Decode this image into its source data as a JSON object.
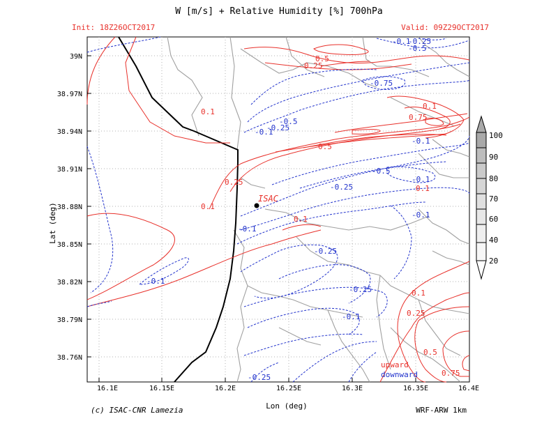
{
  "header": {
    "title": "W [m/s] + Relative Humidity [%] 700hPa",
    "init": "Init: 18Z26OCT2017",
    "valid": "Valid: 09Z29OCT2017"
  },
  "axes": {
    "xlabel": "Lon (deg)",
    "ylabel": "Lat (deg)",
    "x_ticks": [
      "16.1E",
      "16.15E",
      "16.2E",
      "16.25E",
      "16.3E",
      "16.35E",
      "16.4E"
    ],
    "y_ticks": [
      "39N",
      "38.97N",
      "38.94N",
      "38.91N",
      "38.88N",
      "38.85N",
      "38.82N",
      "38.79N",
      "38.76N"
    ]
  },
  "colorbar": {
    "ticks": [
      "100",
      "90",
      "80",
      "70",
      "60",
      "40",
      "20"
    ]
  },
  "map": {
    "station_label": "ISAC",
    "contour_labels_red": [
      "0.5",
      "0.25",
      "0.1",
      "0.75",
      "0.5",
      "0.1",
      "0.25",
      "0.1",
      "0.1",
      "0.1",
      "0.25",
      "0.5",
      "0.75",
      "0.1"
    ],
    "contour_labels_blue": [
      "-0.25",
      "-0.5",
      "-0.75",
      "-0.5",
      "-0.1",
      "-0.25",
      "-0.1",
      "-0.5",
      "-0.1",
      "-0.1",
      "-0.25",
      "-0.1",
      "-0.1",
      "-0.25",
      "-0.25",
      "-0.1",
      "-0.25",
      "-0.1"
    ],
    "legend_upward": "upward",
    "legend_downward": "downward"
  },
  "footer": {
    "credit": "(c) ISAC-CNR Lamezia",
    "model": "WRF-ARW 1km"
  },
  "colors": {
    "positive": "#e8302a",
    "negative": "#2233cc",
    "coast": "#000000",
    "borders": "#a0a0a0",
    "grid": "#b0b0b0",
    "accent_red": "#e8302a"
  }
}
